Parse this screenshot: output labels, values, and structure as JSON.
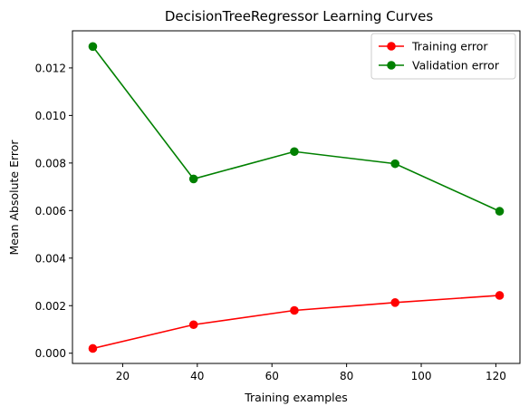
{
  "chart_data": {
    "type": "line",
    "title": "DecisionTreeRegressor Learning Curves",
    "xlabel": "Training examples",
    "ylabel": "Mean Absolute Error",
    "x": [
      12,
      39,
      66,
      93,
      121
    ],
    "series": [
      {
        "name": "Training error",
        "color": "#ff0000",
        "marker": "circle",
        "values": [
          0.0002,
          0.0012,
          0.0018,
          0.00213,
          0.00243
        ]
      },
      {
        "name": "Validation error",
        "color": "#008000",
        "marker": "circle",
        "values": [
          0.0129,
          0.00733,
          0.00848,
          0.00797,
          0.00597
        ]
      }
    ],
    "xlim": [
      6.55,
      126.45
    ],
    "ylim": [
      -0.00043,
      0.01356
    ],
    "xticks": [
      20,
      40,
      60,
      80,
      100,
      120
    ],
    "xtick_labels": [
      "20",
      "40",
      "60",
      "80",
      "100",
      "120"
    ],
    "yticks": [
      0,
      0.002,
      0.004,
      0.006,
      0.008,
      0.01,
      0.012
    ],
    "ytick_labels": [
      "0.000",
      "0.002",
      "0.004",
      "0.006",
      "0.008",
      "0.010",
      "0.012"
    ],
    "grid": false,
    "legend_position": "upper right"
  }
}
